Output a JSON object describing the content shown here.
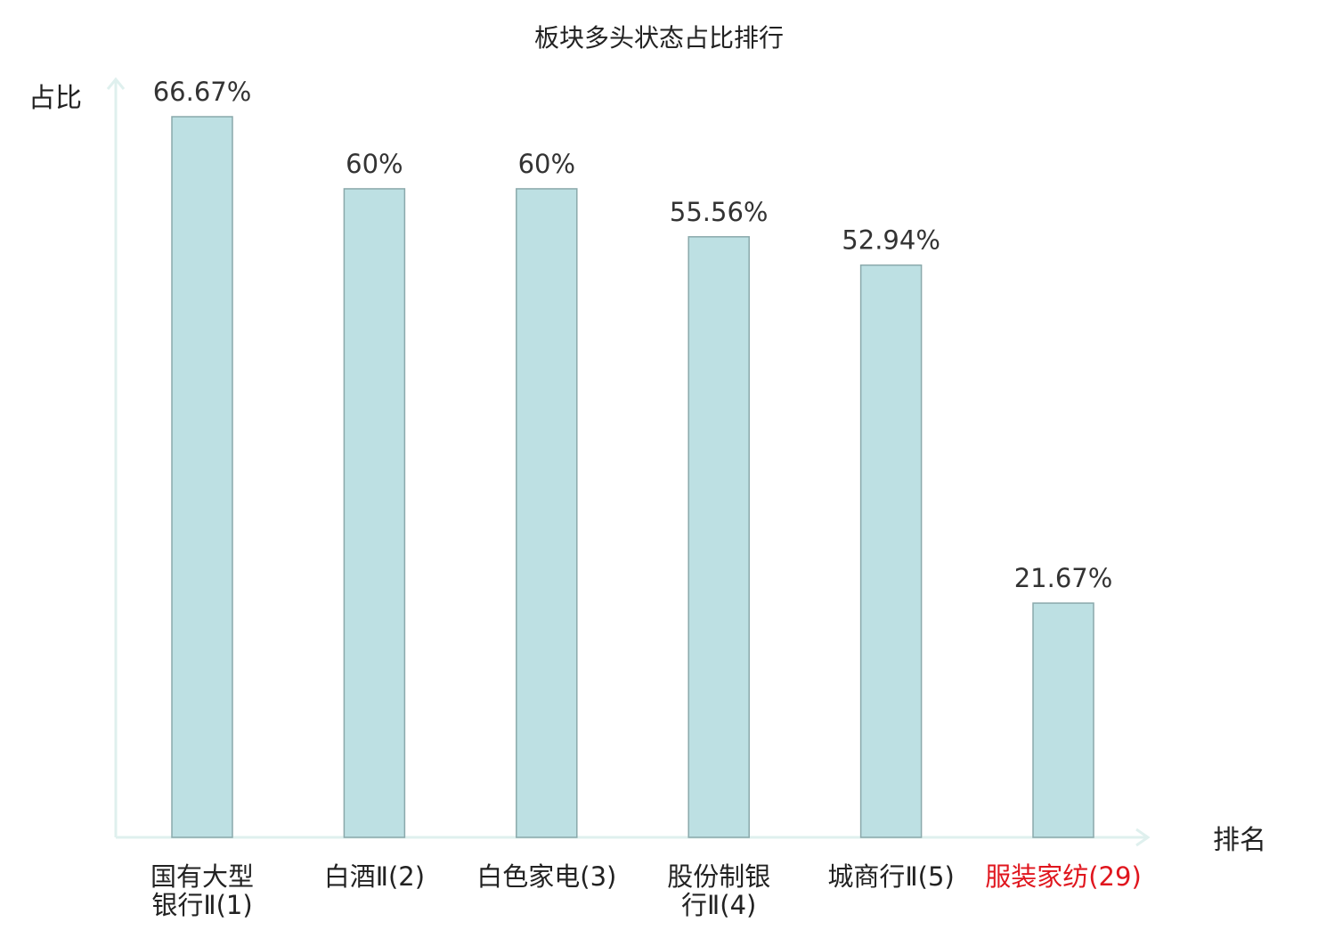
{
  "chart_data": {
    "type": "bar",
    "title": "板块多头状态占比排行",
    "ylabel": "占比",
    "xlabel": "排名",
    "ylim": [
      0,
      70
    ],
    "grid": false,
    "categories": [
      {
        "lines": [
          "国有大型",
          "银行Ⅱ(1)"
        ],
        "highlight": false
      },
      {
        "lines": [
          "白酒Ⅱ(2)"
        ],
        "highlight": false
      },
      {
        "lines": [
          "白色家电(3)"
        ],
        "highlight": false
      },
      {
        "lines": [
          "股份制银",
          "行Ⅱ(4)"
        ],
        "highlight": false
      },
      {
        "lines": [
          "城商行Ⅱ(5)"
        ],
        "highlight": false
      },
      {
        "lines": [
          "服装家纺(29)"
        ],
        "highlight": true
      }
    ],
    "values": [
      66.67,
      60,
      60,
      55.56,
      52.94,
      21.67
    ],
    "value_labels": [
      "66.67%",
      "60%",
      "60%",
      "55.56%",
      "52.94%",
      "21.67%"
    ],
    "colors": {
      "bar_fill": "#bde0e3",
      "bar_stroke": "#8aa9ab",
      "axis": "#dff0ee",
      "text": "#333333",
      "highlight_text": "#e0161e"
    }
  }
}
